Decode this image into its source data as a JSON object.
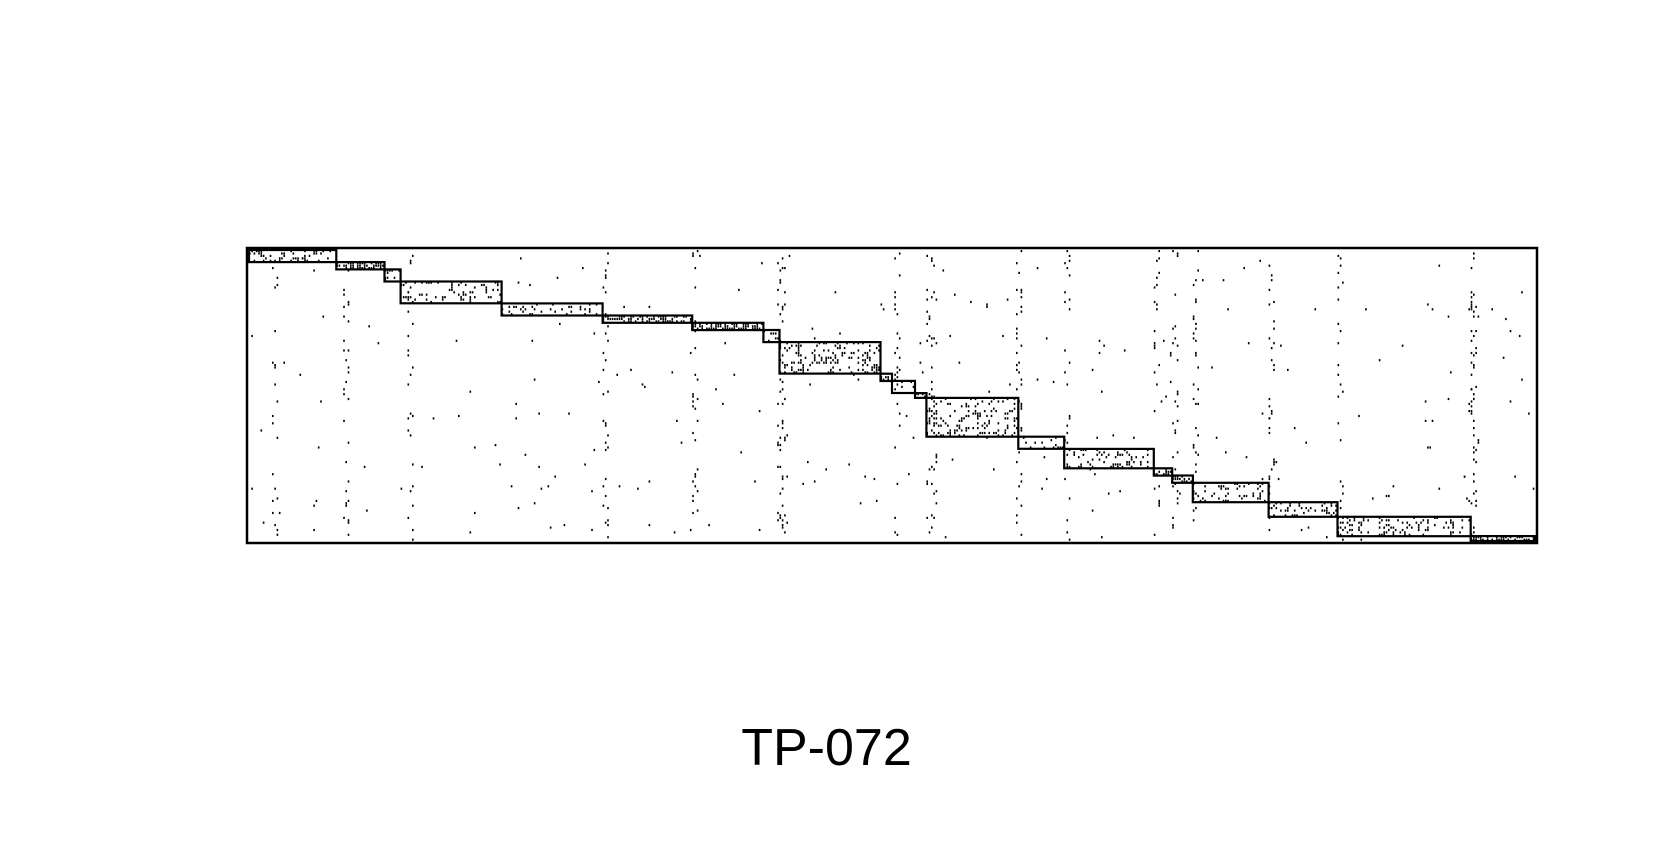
{
  "caption": "TP-072",
  "matrix": {
    "rows": 120,
    "cols": 560,
    "ink_color": "#000000",
    "background_color": "#ffffff",
    "diagonal_blocks": [
      {
        "c0": 0,
        "c1": 38,
        "r0": 0,
        "r1": 5
      },
      {
        "c0": 38,
        "c1": 59,
        "r0": 5,
        "r1": 8
      },
      {
        "c0": 59,
        "c1": 66,
        "r0": 8,
        "r1": 13
      },
      {
        "c0": 66,
        "c1": 110,
        "r0": 13,
        "r1": 22
      },
      {
        "c0": 110,
        "c1": 154,
        "r0": 22,
        "r1": 27
      },
      {
        "c0": 154,
        "c1": 193,
        "r0": 27,
        "r1": 30
      },
      {
        "c0": 193,
        "c1": 224,
        "r0": 30,
        "r1": 33
      },
      {
        "c0": 224,
        "c1": 231,
        "r0": 33,
        "r1": 38
      },
      {
        "c0": 231,
        "c1": 275,
        "r0": 38,
        "r1": 51
      },
      {
        "c0": 275,
        "c1": 280,
        "r0": 51,
        "r1": 54
      },
      {
        "c0": 280,
        "c1": 290,
        "r0": 54,
        "r1": 59
      },
      {
        "c0": 290,
        "c1": 295,
        "r0": 59,
        "r1": 61
      },
      {
        "c0": 295,
        "c1": 335,
        "r0": 61,
        "r1": 77
      },
      {
        "c0": 335,
        "c1": 355,
        "r0": 77,
        "r1": 82
      },
      {
        "c0": 355,
        "c1": 394,
        "r0": 82,
        "r1": 90
      },
      {
        "c0": 394,
        "c1": 402,
        "r0": 90,
        "r1": 93
      },
      {
        "c0": 402,
        "c1": 411,
        "r0": 93,
        "r1": 96
      },
      {
        "c0": 411,
        "c1": 444,
        "r0": 96,
        "r1": 104
      },
      {
        "c0": 444,
        "c1": 474,
        "r0": 104,
        "r1": 110
      },
      {
        "c0": 474,
        "c1": 532,
        "r0": 110,
        "r1": 118
      },
      {
        "c0": 532,
        "c1": 560,
        "r0": 118,
        "r1": 120
      }
    ],
    "off_block_columns": [
      10,
      41,
      69,
      154,
      193,
      230,
      231,
      281,
      295,
      297,
      334,
      355,
      394,
      402,
      411,
      444,
      474,
      531,
      532
    ]
  }
}
